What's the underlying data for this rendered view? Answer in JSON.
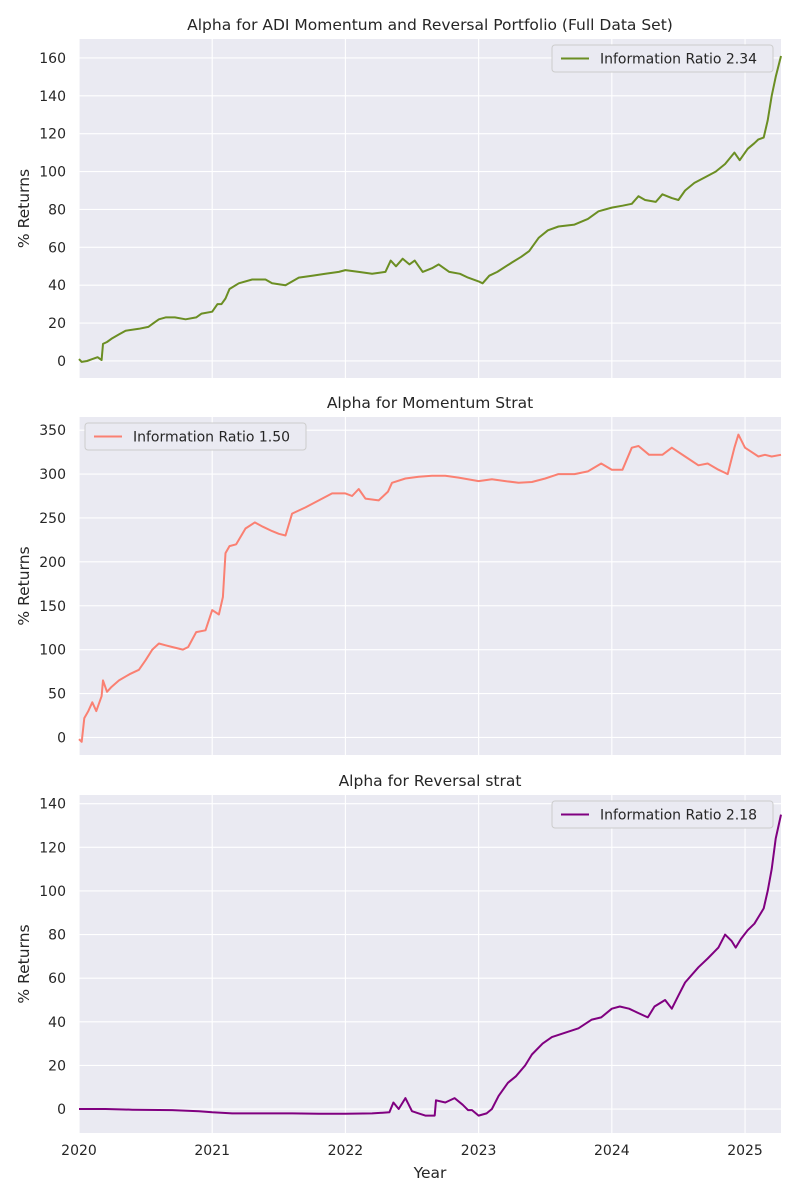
{
  "figure": {
    "xlabel": "Year",
    "x_ticks": [
      "2020",
      "2021",
      "2022",
      "2023",
      "2024",
      "2025"
    ]
  },
  "chart_data": [
    {
      "type": "line",
      "title": "Alpha for ADI Momentum and Reversal Portfolio (Full Data Set)",
      "ylabel": "% Returns",
      "xlabel": "",
      "xlim": [
        2020.0,
        2025.27
      ],
      "ylim": [
        -9,
        170
      ],
      "y_ticks": [
        0,
        20,
        40,
        60,
        80,
        100,
        120,
        140,
        160
      ],
      "grid": true,
      "legend_position": "top-right",
      "series": [
        {
          "name": "Information Ratio 2.34",
          "color": "#6b8e23",
          "points": [
            [
              2020.0,
              1
            ],
            [
              2020.02,
              -0.5
            ],
            [
              2020.06,
              0
            ],
            [
              2020.1,
              1
            ],
            [
              2020.14,
              2
            ],
            [
              2020.17,
              0.5
            ],
            [
              2020.18,
              9
            ],
            [
              2020.21,
              10
            ],
            [
              2020.25,
              12
            ],
            [
              2020.3,
              14
            ],
            [
              2020.35,
              16
            ],
            [
              2020.45,
              17
            ],
            [
              2020.52,
              18
            ],
            [
              2020.56,
              20
            ],
            [
              2020.6,
              22
            ],
            [
              2020.65,
              23
            ],
            [
              2020.72,
              23
            ],
            [
              2020.8,
              22
            ],
            [
              2020.88,
              23
            ],
            [
              2020.92,
              25
            ],
            [
              2021.0,
              26
            ],
            [
              2021.04,
              30
            ],
            [
              2021.07,
              30
            ],
            [
              2021.1,
              33
            ],
            [
              2021.13,
              38
            ],
            [
              2021.2,
              41
            ],
            [
              2021.3,
              43
            ],
            [
              2021.4,
              43
            ],
            [
              2021.45,
              41
            ],
            [
              2021.55,
              40
            ],
            [
              2021.65,
              44
            ],
            [
              2021.75,
              45
            ],
            [
              2021.85,
              46
            ],
            [
              2021.95,
              47
            ],
            [
              2022.0,
              48
            ],
            [
              2022.1,
              47
            ],
            [
              2022.2,
              46
            ],
            [
              2022.3,
              47
            ],
            [
              2022.34,
              53
            ],
            [
              2022.38,
              50
            ],
            [
              2022.43,
              54
            ],
            [
              2022.48,
              51
            ],
            [
              2022.52,
              53
            ],
            [
              2022.58,
              47
            ],
            [
              2022.65,
              49
            ],
            [
              2022.7,
              51
            ],
            [
              2022.78,
              47
            ],
            [
              2022.86,
              46
            ],
            [
              2022.92,
              44
            ],
            [
              2023.0,
              42
            ],
            [
              2023.03,
              41
            ],
            [
              2023.08,
              45
            ],
            [
              2023.14,
              47
            ],
            [
              2023.25,
              52
            ],
            [
              2023.32,
              55
            ],
            [
              2023.38,
              58
            ],
            [
              2023.45,
              65
            ],
            [
              2023.52,
              69
            ],
            [
              2023.6,
              71
            ],
            [
              2023.72,
              72
            ],
            [
              2023.82,
              75
            ],
            [
              2023.9,
              79
            ],
            [
              2024.0,
              81
            ],
            [
              2024.08,
              82
            ],
            [
              2024.15,
              83
            ],
            [
              2024.2,
              87
            ],
            [
              2024.25,
              85
            ],
            [
              2024.33,
              84
            ],
            [
              2024.38,
              88
            ],
            [
              2024.45,
              86
            ],
            [
              2024.5,
              85
            ],
            [
              2024.55,
              90
            ],
            [
              2024.62,
              94
            ],
            [
              2024.7,
              97
            ],
            [
              2024.78,
              100
            ],
            [
              2024.85,
              104
            ],
            [
              2024.92,
              110
            ],
            [
              2024.96,
              106
            ],
            [
              2025.02,
              112
            ],
            [
              2025.07,
              115
            ],
            [
              2025.1,
              117
            ],
            [
              2025.14,
              118
            ],
            [
              2025.17,
              127
            ],
            [
              2025.2,
              140
            ],
            [
              2025.23,
              150
            ],
            [
              2025.27,
              161
            ]
          ]
        }
      ]
    },
    {
      "type": "line",
      "title": "Alpha for Momentum Strat",
      "ylabel": "% Returns",
      "xlabel": "",
      "xlim": [
        2020.0,
        2025.27
      ],
      "ylim": [
        -20,
        365
      ],
      "y_ticks": [
        0,
        50,
        100,
        150,
        200,
        250,
        300,
        350
      ],
      "grid": true,
      "legend_position": "top-left",
      "series": [
        {
          "name": "Information Ratio 1.50",
          "color": "#fa8072",
          "points": [
            [
              2020.0,
              -2
            ],
            [
              2020.02,
              -5
            ],
            [
              2020.04,
              22
            ],
            [
              2020.07,
              30
            ],
            [
              2020.1,
              40
            ],
            [
              2020.13,
              30
            ],
            [
              2020.17,
              47
            ],
            [
              2020.18,
              65
            ],
            [
              2020.21,
              52
            ],
            [
              2020.24,
              57
            ],
            [
              2020.3,
              65
            ],
            [
              2020.38,
              72
            ],
            [
              2020.45,
              77
            ],
            [
              2020.5,
              88
            ],
            [
              2020.55,
              100
            ],
            [
              2020.6,
              107
            ],
            [
              2020.65,
              105
            ],
            [
              2020.7,
              103
            ],
            [
              2020.78,
              100
            ],
            [
              2020.82,
              103
            ],
            [
              2020.88,
              120
            ],
            [
              2020.95,
              122
            ],
            [
              2021.0,
              145
            ],
            [
              2021.05,
              140
            ],
            [
              2021.08,
              160
            ],
            [
              2021.1,
              210
            ],
            [
              2021.13,
              218
            ],
            [
              2021.18,
              220
            ],
            [
              2021.25,
              238
            ],
            [
              2021.32,
              245
            ],
            [
              2021.38,
              240
            ],
            [
              2021.45,
              235
            ],
            [
              2021.5,
              232
            ],
            [
              2021.55,
              230
            ],
            [
              2021.6,
              255
            ],
            [
              2021.7,
              262
            ],
            [
              2021.8,
              270
            ],
            [
              2021.9,
              278
            ],
            [
              2022.0,
              278
            ],
            [
              2022.05,
              275
            ],
            [
              2022.1,
              283
            ],
            [
              2022.15,
              272
            ],
            [
              2022.25,
              270
            ],
            [
              2022.32,
              280
            ],
            [
              2022.35,
              290
            ],
            [
              2022.45,
              295
            ],
            [
              2022.55,
              297
            ],
            [
              2022.65,
              298
            ],
            [
              2022.75,
              298
            ],
            [
              2022.85,
              296
            ],
            [
              2023.0,
              292
            ],
            [
              2023.1,
              294
            ],
            [
              2023.2,
              292
            ],
            [
              2023.3,
              290
            ],
            [
              2023.4,
              291
            ],
            [
              2023.5,
              295
            ],
            [
              2023.6,
              300
            ],
            [
              2023.72,
              300
            ],
            [
              2023.82,
              303
            ],
            [
              2023.92,
              312
            ],
            [
              2024.0,
              305
            ],
            [
              2024.08,
              305
            ],
            [
              2024.15,
              330
            ],
            [
              2024.2,
              332
            ],
            [
              2024.28,
              322
            ],
            [
              2024.38,
              322
            ],
            [
              2024.45,
              330
            ],
            [
              2024.55,
              320
            ],
            [
              2024.65,
              310
            ],
            [
              2024.72,
              312
            ],
            [
              2024.8,
              305
            ],
            [
              2024.87,
              300
            ],
            [
              2024.92,
              330
            ],
            [
              2024.95,
              345
            ],
            [
              2025.0,
              330
            ],
            [
              2025.05,
              325
            ],
            [
              2025.1,
              320
            ],
            [
              2025.15,
              322
            ],
            [
              2025.2,
              320
            ],
            [
              2025.27,
              322
            ]
          ]
        }
      ]
    },
    {
      "type": "line",
      "title": "Alpha for Reversal strat",
      "ylabel": "% Returns",
      "xlabel": "Year",
      "xlim": [
        2020.0,
        2025.27
      ],
      "ylim": [
        -11,
        144
      ],
      "y_ticks": [
        0,
        20,
        40,
        60,
        80,
        100,
        120,
        140
      ],
      "grid": true,
      "legend_position": "top-right",
      "series": [
        {
          "name": "Information Ratio 2.18",
          "color": "#800080",
          "points": [
            [
              2020.0,
              0
            ],
            [
              2020.2,
              0
            ],
            [
              2020.4,
              -0.3
            ],
            [
              2020.7,
              -0.5
            ],
            [
              2020.9,
              -1
            ],
            [
              2021.0,
              -1.5
            ],
            [
              2021.15,
              -2
            ],
            [
              2021.4,
              -2
            ],
            [
              2021.6,
              -2
            ],
            [
              2021.8,
              -2.2
            ],
            [
              2022.0,
              -2.2
            ],
            [
              2022.2,
              -2
            ],
            [
              2022.33,
              -1.5
            ],
            [
              2022.36,
              3
            ],
            [
              2022.4,
              0
            ],
            [
              2022.45,
              5
            ],
            [
              2022.5,
              -1
            ],
            [
              2022.55,
              -2
            ],
            [
              2022.6,
              -3
            ],
            [
              2022.67,
              -3
            ],
            [
              2022.68,
              4
            ],
            [
              2022.75,
              3
            ],
            [
              2022.82,
              5
            ],
            [
              2022.88,
              2
            ],
            [
              2022.92,
              -0.5
            ],
            [
              2022.95,
              -0.5
            ],
            [
              2023.0,
              -3
            ],
            [
              2023.06,
              -2
            ],
            [
              2023.1,
              0
            ],
            [
              2023.15,
              6
            ],
            [
              2023.22,
              12
            ],
            [
              2023.28,
              15
            ],
            [
              2023.35,
              20
            ],
            [
              2023.4,
              25
            ],
            [
              2023.48,
              30
            ],
            [
              2023.55,
              33
            ],
            [
              2023.65,
              35
            ],
            [
              2023.75,
              37
            ],
            [
              2023.85,
              41
            ],
            [
              2023.92,
              42
            ],
            [
              2024.0,
              46
            ],
            [
              2024.06,
              47
            ],
            [
              2024.13,
              46
            ],
            [
              2024.2,
              44
            ],
            [
              2024.27,
              42
            ],
            [
              2024.32,
              47
            ],
            [
              2024.4,
              50
            ],
            [
              2024.45,
              46
            ],
            [
              2024.5,
              52
            ],
            [
              2024.55,
              58
            ],
            [
              2024.65,
              65
            ],
            [
              2024.72,
              69
            ],
            [
              2024.8,
              74
            ],
            [
              2024.85,
              80
            ],
            [
              2024.9,
              77
            ],
            [
              2024.93,
              74
            ],
            [
              2024.97,
              78
            ],
            [
              2025.02,
              82
            ],
            [
              2025.07,
              85
            ],
            [
              2025.1,
              88
            ],
            [
              2025.14,
              92
            ],
            [
              2025.17,
              100
            ],
            [
              2025.2,
              110
            ],
            [
              2025.23,
              124
            ],
            [
              2025.27,
              135
            ]
          ]
        }
      ]
    }
  ]
}
